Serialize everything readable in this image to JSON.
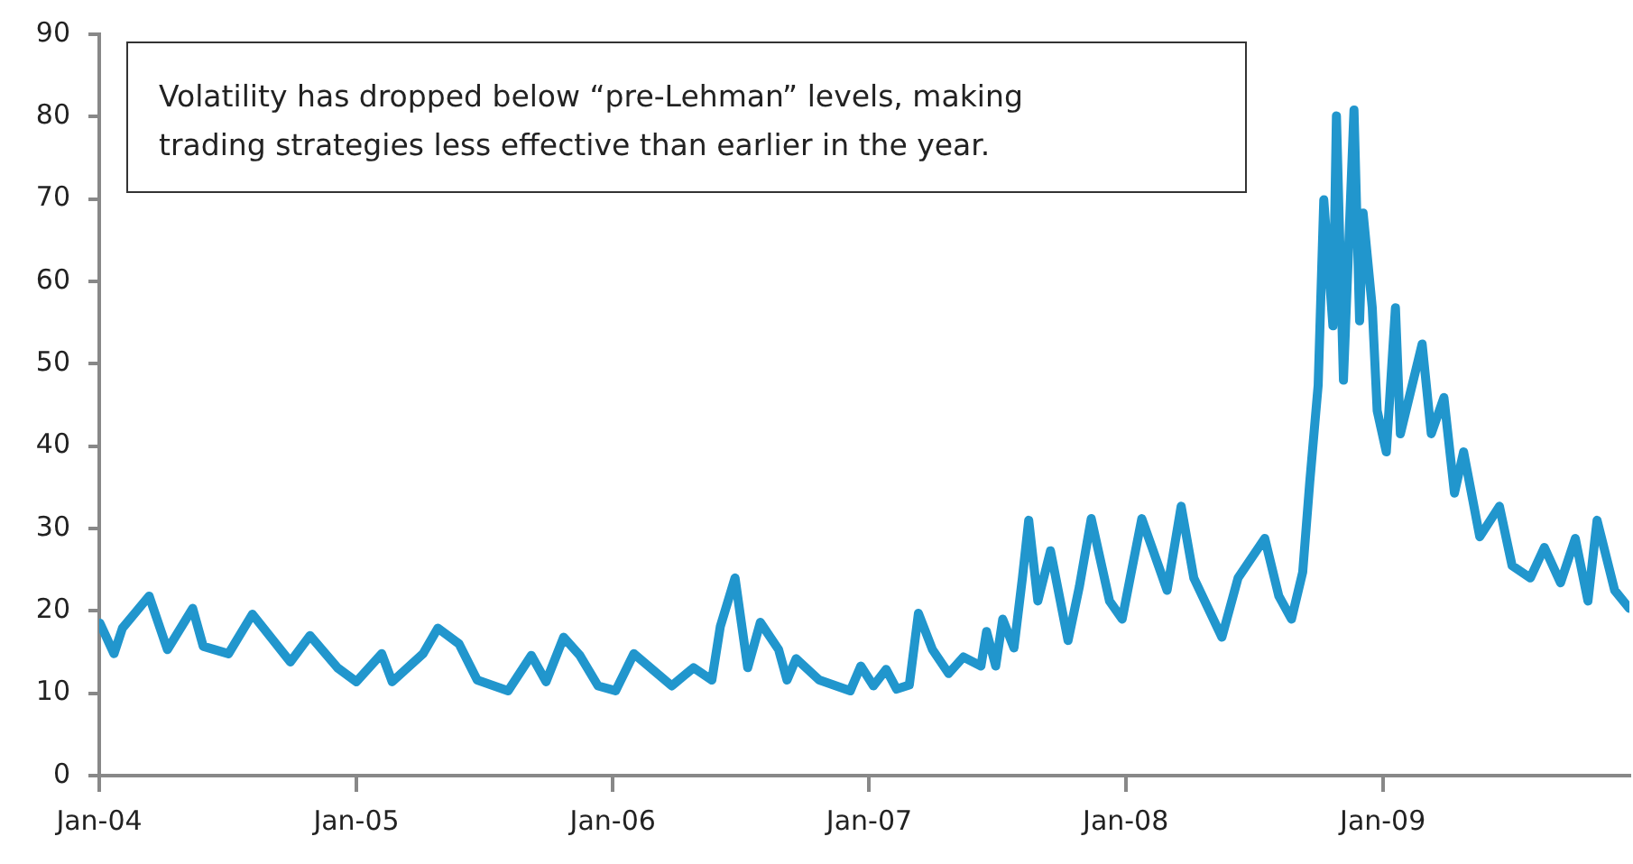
{
  "chart_data": {
    "type": "line",
    "annotations": [
      "Volatility has dropped below “pre-Lehman” levels, making trading strategies less effective than earlier in the year."
    ],
    "xlim": [
      "2004-01-01",
      "2009-12-18"
    ],
    "xticks": [
      {
        "value": "2004-01-01",
        "label": "Jan-04"
      },
      {
        "value": "2005-01-01",
        "label": "Jan-05"
      },
      {
        "value": "2006-01-01",
        "label": "Jan-06"
      },
      {
        "value": "2007-01-01",
        "label": "Jan-07"
      },
      {
        "value": "2008-01-01",
        "label": "Jan-08"
      },
      {
        "value": "2009-01-01",
        "label": "Jan-09"
      }
    ],
    "ylim": [
      0,
      90
    ],
    "yticks": [
      0,
      10,
      20,
      30,
      40,
      50,
      60,
      70,
      80,
      90
    ],
    "grid": false,
    "legend": false,
    "marker": "none",
    "line_style": "solid",
    "series": [
      {
        "color": "#2196cd",
        "x": [
          "2004-01-02",
          "2004-01-22",
          "2004-02-03",
          "2004-03-12",
          "2004-04-07",
          "2004-05-13",
          "2004-05-28",
          "2004-07-03",
          "2004-08-06",
          "2004-09-29",
          "2004-10-27",
          "2004-12-05",
          "2005-01-01",
          "2005-02-06",
          "2005-02-21",
          "2005-04-06",
          "2005-04-27",
          "2005-05-27",
          "2005-06-22",
          "2005-08-05",
          "2005-09-07",
          "2005-09-28",
          "2005-10-23",
          "2005-11-15",
          "2005-12-11",
          "2006-01-05",
          "2006-01-31",
          "2006-03-26",
          "2006-04-26",
          "2006-05-22",
          "2006-06-03",
          "2006-06-24",
          "2006-07-12",
          "2006-07-30",
          "2006-08-25",
          "2006-09-06",
          "2006-09-19",
          "2006-10-22",
          "2006-12-05",
          "2006-12-20",
          "2007-01-07",
          "2007-01-25",
          "2007-02-09",
          "2007-02-27",
          "2007-03-12",
          "2007-04-01",
          "2007-04-24",
          "2007-05-15",
          "2007-06-09",
          "2007-06-17",
          "2007-06-30",
          "2007-07-10",
          "2007-07-26",
          "2007-08-07",
          "2007-08-16",
          "2007-08-29",
          "2007-09-16",
          "2007-10-11",
          "2007-10-27",
          "2007-11-13",
          "2007-12-09",
          "2007-12-27",
          "2008-01-09",
          "2008-01-24",
          "2008-02-29",
          "2008-03-20",
          "2008-04-07",
          "2008-05-17",
          "2008-06-09",
          "2008-07-17",
          "2008-08-06",
          "2008-08-24",
          "2008-09-09",
          "2008-09-19",
          "2008-10-01",
          "2008-10-09",
          "2008-10-22",
          "2008-10-27",
          "2008-11-06",
          "2008-11-21",
          "2008-11-29",
          "2008-12-04",
          "2008-12-17",
          "2008-12-24",
          "2009-01-06",
          "2009-01-19",
          "2009-01-26",
          "2009-02-26",
          "2009-03-11",
          "2009-03-29",
          "2009-04-13",
          "2009-04-26",
          "2009-05-19",
          "2009-06-16",
          "2009-07-04",
          "2009-07-30",
          "2009-08-19",
          "2009-09-11",
          "2009-10-02",
          "2009-10-20",
          "2009-11-02",
          "2009-11-27",
          "2009-12-18"
        ],
        "values": [
          18.5,
          14.8,
          17.9,
          21.8,
          15.3,
          20.3,
          15.7,
          14.8,
          19.6,
          13.8,
          17,
          13.1,
          11.4,
          14.8,
          11.4,
          14.8,
          17.9,
          16,
          11.6,
          10.3,
          14.6,
          11.4,
          16.8,
          14.6,
          10.9,
          10.3,
          14.8,
          10.9,
          13.1,
          11.6,
          18.1,
          24,
          13.1,
          18.6,
          15.3,
          11.6,
          14.2,
          11.6,
          10.3,
          13.3,
          10.9,
          12.9,
          10.5,
          11,
          19.7,
          15.3,
          12.4,
          14.4,
          13.3,
          17.5,
          13.3,
          19,
          15.5,
          24,
          31,
          21.2,
          27.3,
          16.4,
          22.9,
          31.2,
          21.2,
          19,
          24.7,
          31.2,
          22.5,
          32.7,
          24,
          16.8,
          24,
          28.8,
          21.8,
          19,
          24.7,
          35.6,
          47.4,
          69.9,
          54.6,
          80.1,
          48,
          80.8,
          55.2,
          68.3,
          56.8,
          44.3,
          39.3,
          56.8,
          41.5,
          52.4,
          41.5,
          45.9,
          34.3,
          39.3,
          29,
          32.7,
          25.5,
          24,
          27.7,
          23.4,
          28.8,
          21.2,
          31,
          22.5,
          20.3
        ]
      }
    ]
  }
}
